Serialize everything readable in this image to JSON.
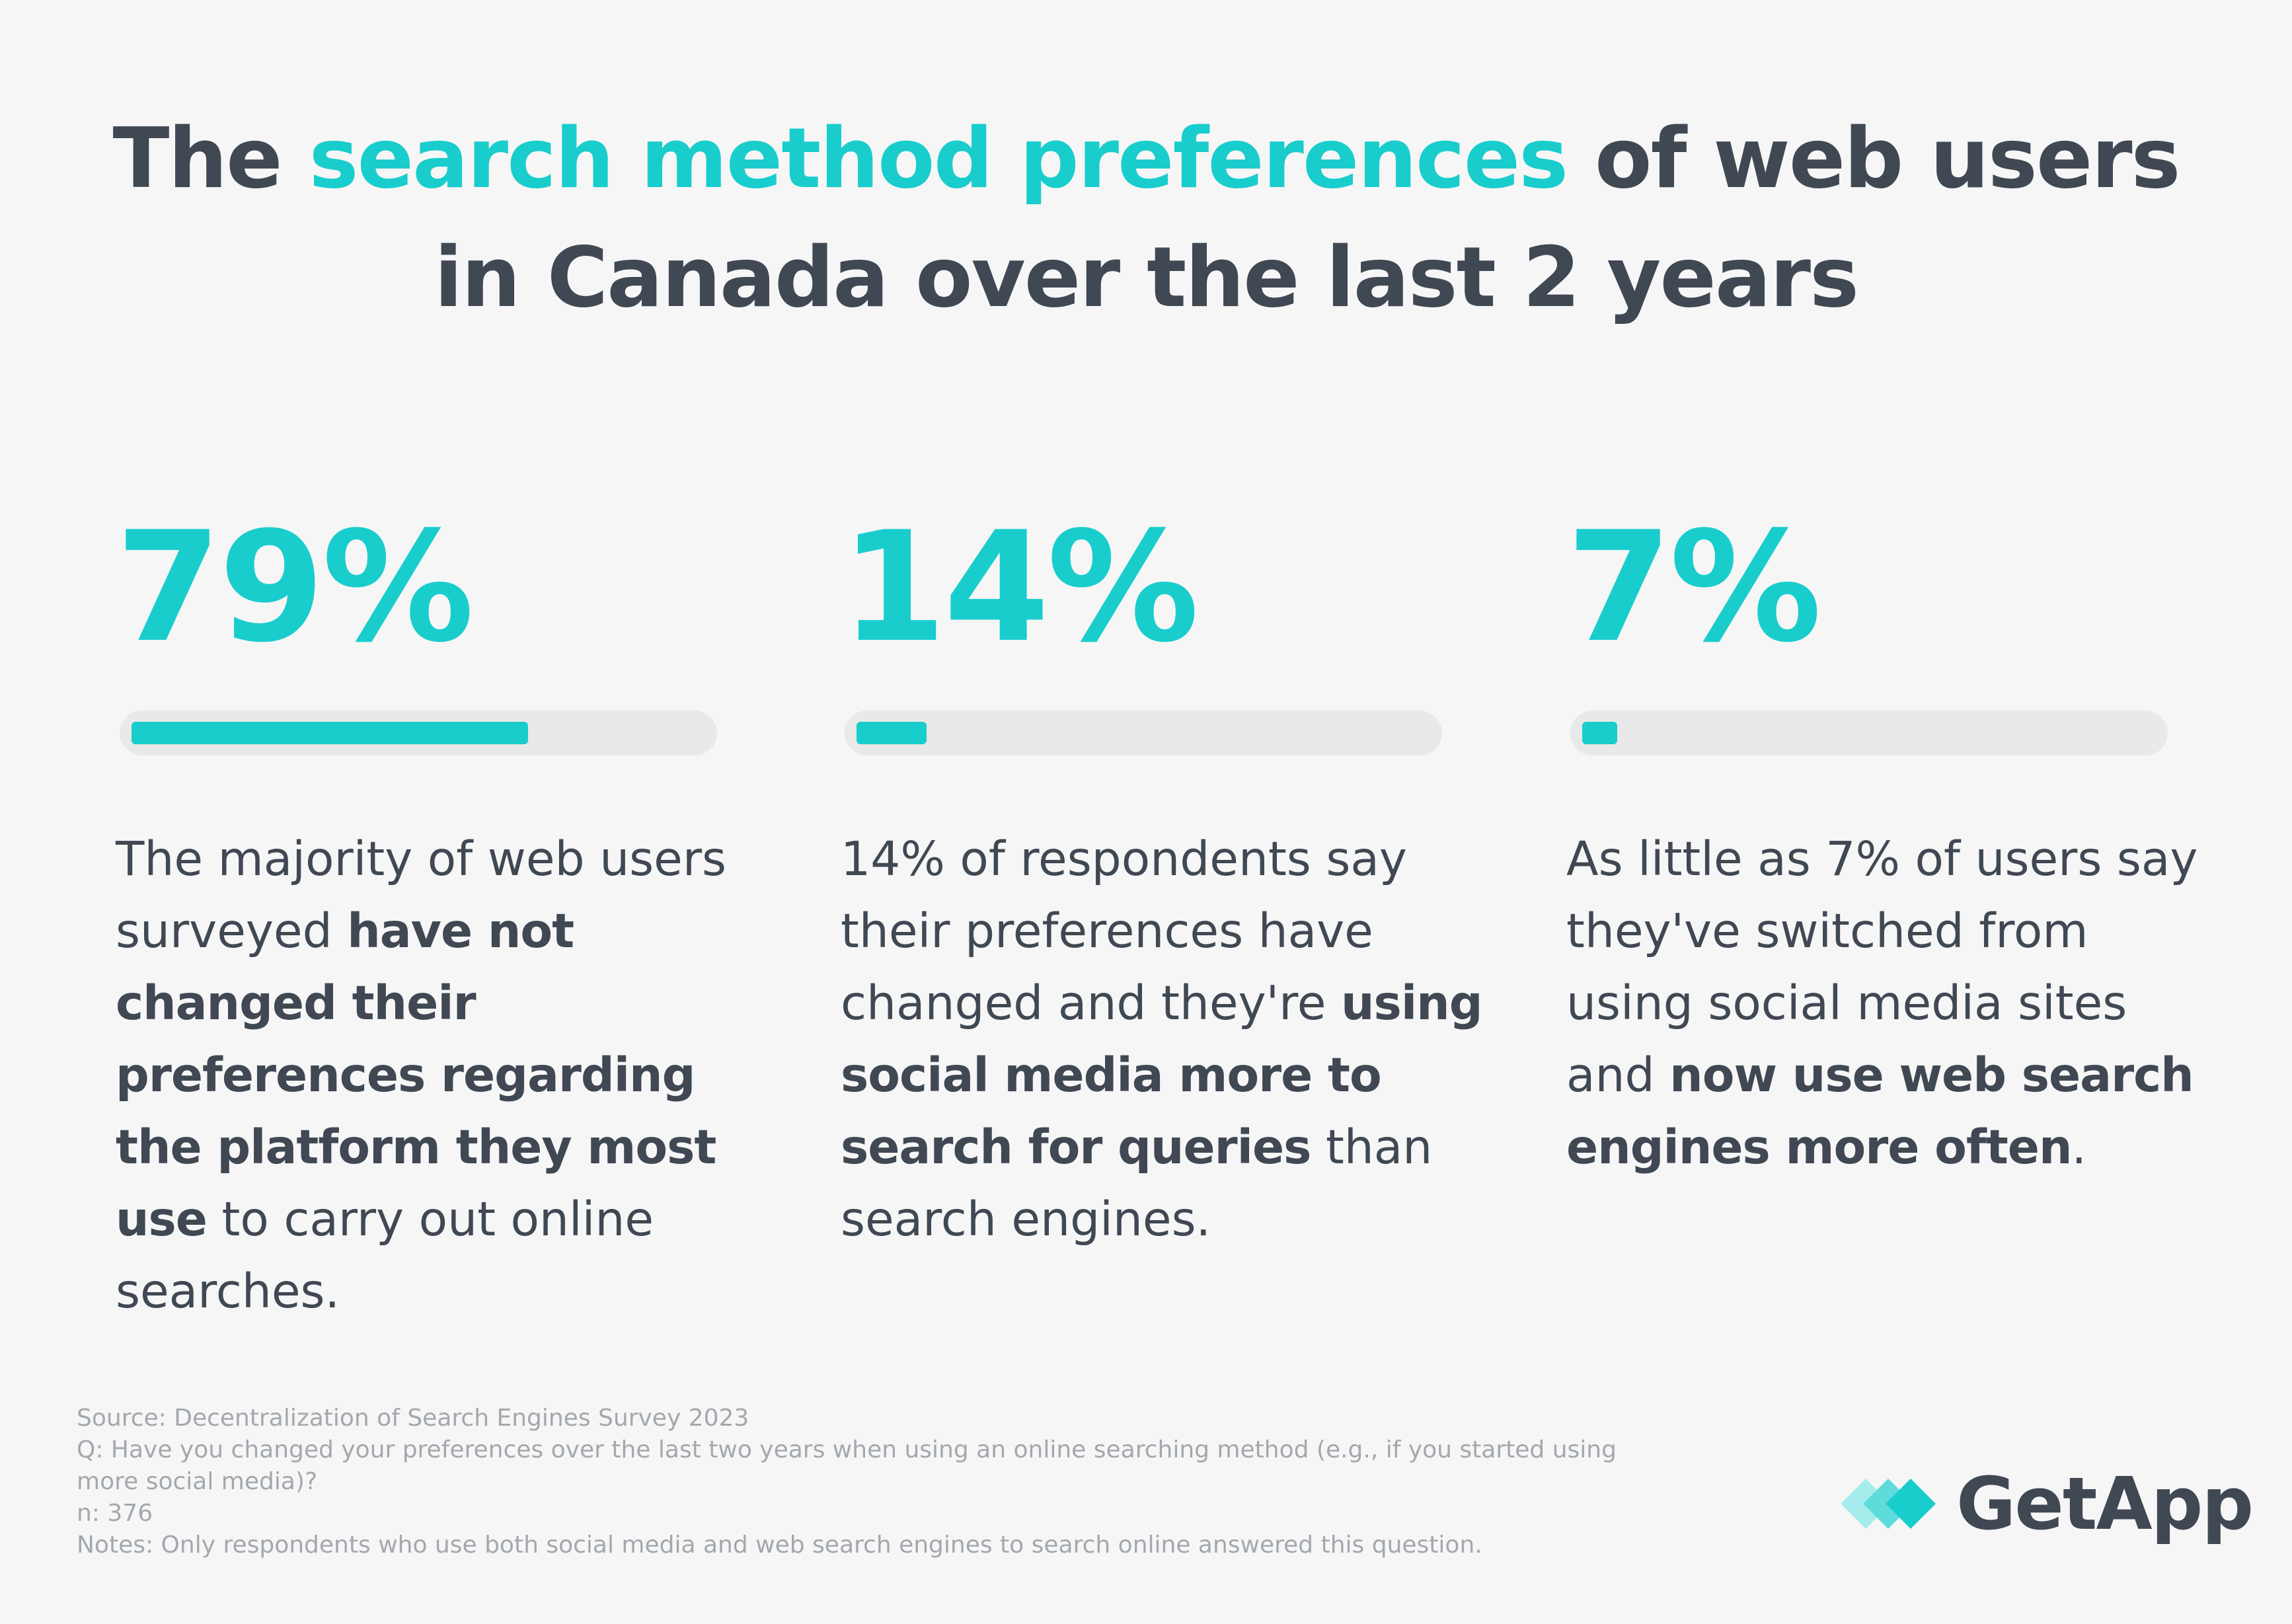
{
  "title": {
    "prefix": "The ",
    "highlight": "search method preferences",
    "suffix_line1": " of web users",
    "line2": "in Canada over the last 2 years"
  },
  "chart_data": {
    "type": "bar",
    "title": "The search method preferences of web users in Canada over the last 2 years",
    "categories": [
      "have not changed preferences",
      "using social media more than search engines",
      "switched from social media to web search engines"
    ],
    "values": [
      79,
      14,
      7
    ],
    "unit": "%",
    "ylim": [
      0,
      100
    ]
  },
  "stats": [
    {
      "value_label": "79%",
      "fraction": 0.79,
      "text_parts": [
        {
          "t": "The majority of web users surveyed ",
          "b": false
        },
        {
          "t": "have not changed their preferences regarding the platform they most use",
          "b": true
        },
        {
          "t": " to carry out online searches.",
          "b": false
        }
      ]
    },
    {
      "value_label": "14%",
      "fraction": 0.14,
      "text_parts": [
        {
          "t": "14% of respondents say their preferences have changed and they're ",
          "b": false
        },
        {
          "t": "using social media more to search for queries",
          "b": true
        },
        {
          "t": " than search engines.",
          "b": false
        }
      ]
    },
    {
      "value_label": "7%",
      "fraction": 0.07,
      "text_parts": [
        {
          "t": "As little as 7% of users say they've switched from using social media sites and ",
          "b": false
        },
        {
          "t": "now use web search engines more often",
          "b": true
        },
        {
          "t": ".",
          "b": false
        }
      ]
    }
  ],
  "footer": {
    "source": "Source: Decentralization of Search Engines Survey 2023",
    "question": "Q: Have you changed your preferences over the last two years when using an online searching method (e.g., if you started using\nmore social media)?",
    "n": "n: 376",
    "notes": "Notes: Only respondents who use both social media and web search engines to search online answered this question."
  },
  "logo": {
    "name": "GetApp"
  },
  "colors": {
    "accent": "#19cdcd",
    "text": "#404853",
    "track": "#e8e9e8",
    "background": "#f6f6f6",
    "muted": "#a3a8ae"
  }
}
